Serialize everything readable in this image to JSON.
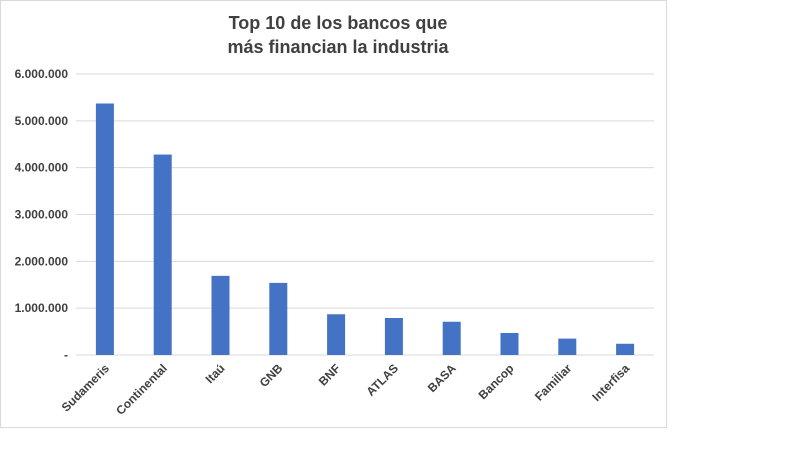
{
  "chart_data": {
    "type": "bar",
    "title_lines": [
      "Top 10 de los bancos que",
      "más financian la industria"
    ],
    "categories": [
      "Sudameris",
      "Continental",
      "Itaú",
      "GNB",
      "BNF",
      "ATLAS",
      "BASA",
      "Bancop",
      "Familiar",
      "Interfisa"
    ],
    "values": [
      5370000,
      4280000,
      1690000,
      1540000,
      870000,
      790000,
      710000,
      470000,
      350000,
      240000
    ],
    "ylim": [
      0,
      6000000
    ],
    "yticks": [
      0,
      1000000,
      2000000,
      3000000,
      4000000,
      5000000,
      6000000
    ],
    "ytick_labels": [
      "-",
      "1.000.000",
      "2.000.000",
      "3.000.000",
      "4.000.000",
      "5.000.000",
      "6.000.000"
    ],
    "grid": true,
    "bar_color": "#4472c4",
    "grid_color": "#d9d9d9"
  }
}
